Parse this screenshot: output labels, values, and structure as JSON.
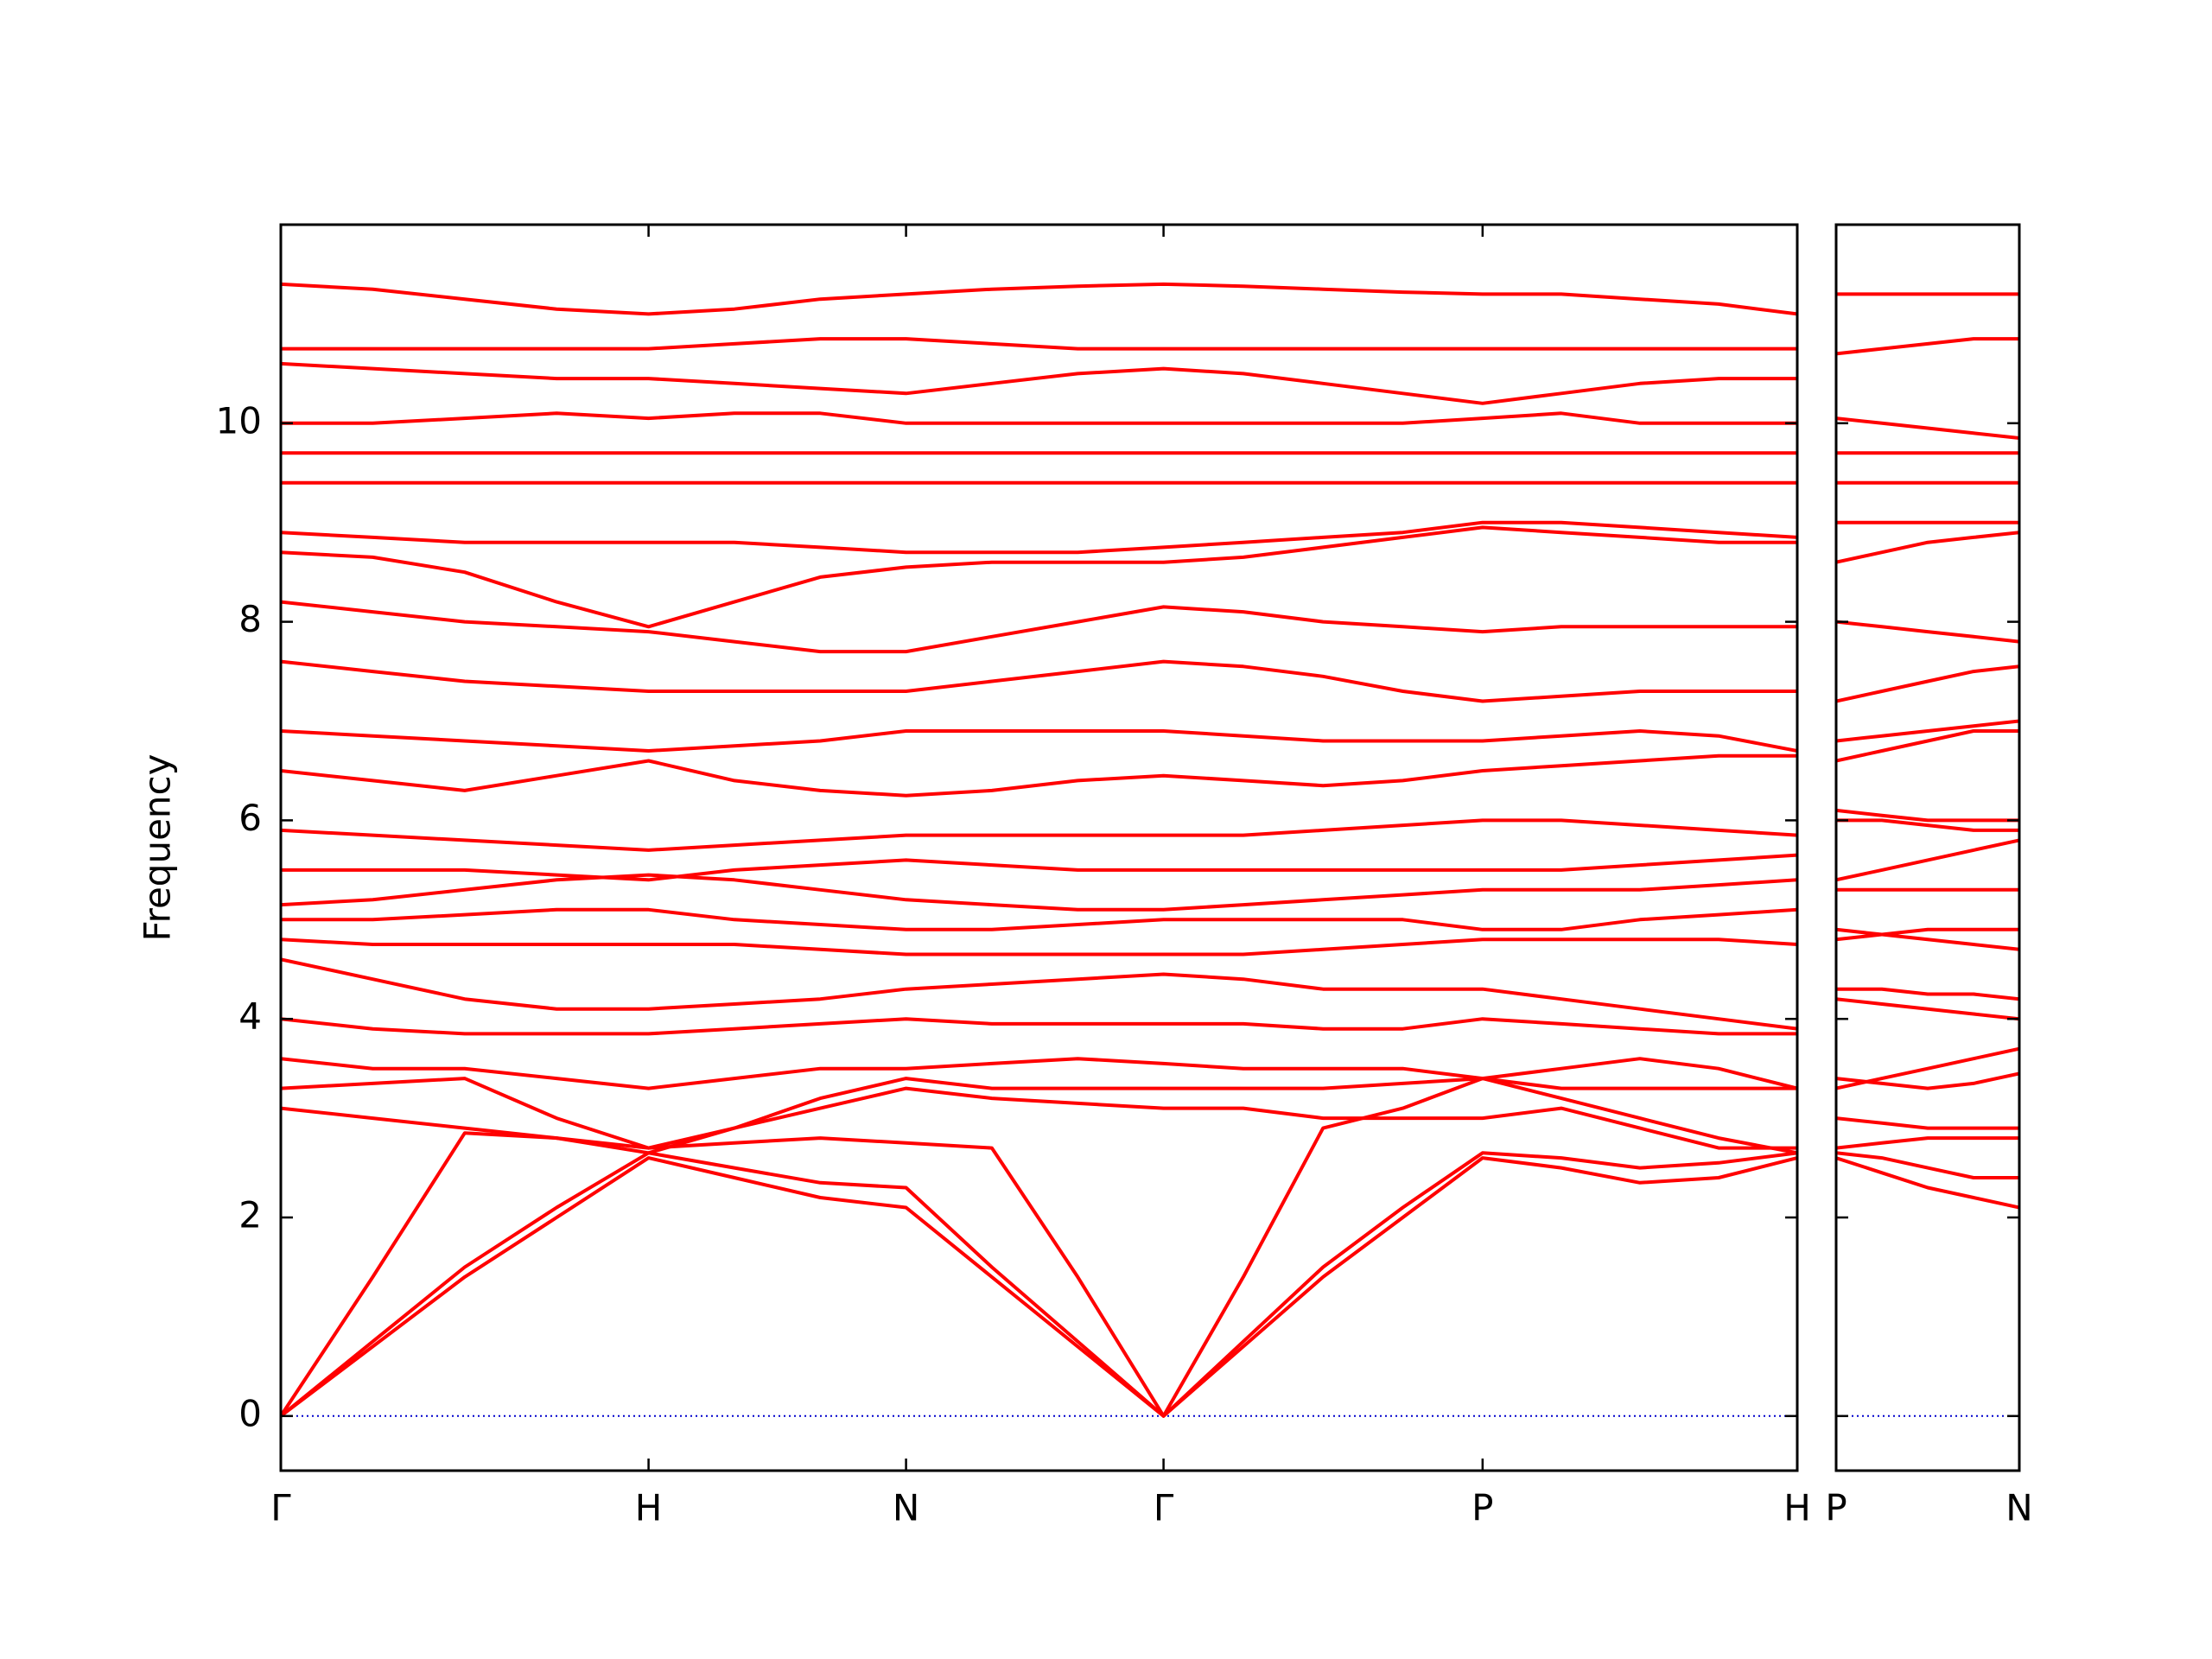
{
  "chart_data": [
    {
      "type": "line",
      "ylabel": "Frequency",
      "color": "#ff0000",
      "zero_line_color": "#0000cc",
      "ylim": [
        -0.55,
        12.0
      ],
      "yticks": [
        0,
        2,
        4,
        6,
        8,
        10
      ],
      "categories": [
        "Γ",
        null,
        null,
        null,
        "H",
        null,
        null,
        "N",
        null,
        null,
        "Γ",
        null,
        null,
        null,
        "P",
        null,
        null,
        null,
        "H"
      ],
      "series": [
        {
          "values": [
            0,
            0.7,
            1.4,
            2.0,
            2.6,
            2.4,
            2.2,
            2.1,
            1.4,
            0.7,
            0,
            0.7,
            1.4,
            2.0,
            2.6,
            2.5,
            2.35,
            2.4,
            2.6
          ]
        },
        {
          "values": [
            0,
            0.75,
            1.5,
            2.1,
            2.65,
            2.5,
            2.35,
            2.3,
            1.5,
            0.75,
            0,
            0.75,
            1.5,
            2.1,
            2.65,
            2.6,
            2.5,
            2.55,
            2.65
          ]
        },
        {
          "values": [
            0,
            1.4,
            2.85,
            2.8,
            2.7,
            2.75,
            2.8,
            2.75,
            2.7,
            1.4,
            0,
            1.4,
            2.9,
            3.1,
            3.4,
            3.2,
            3.0,
            2.8,
            2.65
          ]
        },
        {
          "values": [
            3.1,
            3.0,
            2.9,
            2.8,
            2.65,
            2.9,
            3.1,
            3.3,
            3.2,
            3.15,
            3.1,
            3.1,
            3.0,
            3.0,
            3.0,
            3.1,
            2.9,
            2.7,
            2.7
          ]
        },
        {
          "values": [
            3.3,
            3.35,
            3.4,
            3.0,
            2.7,
            2.9,
            3.2,
            3.4,
            3.3,
            3.3,
            3.3,
            3.3,
            3.3,
            3.35,
            3.4,
            3.5,
            3.6,
            3.5,
            3.3
          ]
        },
        {
          "values": [
            3.6,
            3.5,
            3.5,
            3.4,
            3.3,
            3.4,
            3.5,
            3.5,
            3.55,
            3.6,
            3.55,
            3.5,
            3.5,
            3.5,
            3.4,
            3.3,
            3.3,
            3.3,
            3.3
          ]
        },
        {
          "values": [
            4.0,
            3.9,
            3.85,
            3.85,
            3.85,
            3.9,
            3.95,
            4.0,
            3.95,
            3.95,
            3.95,
            3.95,
            3.9,
            3.9,
            4.0,
            3.95,
            3.9,
            3.85,
            3.85
          ]
        },
        {
          "values": [
            4.6,
            4.4,
            4.2,
            4.1,
            4.1,
            4.15,
            4.2,
            4.3,
            4.35,
            4.4,
            4.45,
            4.4,
            4.3,
            4.3,
            4.3,
            4.2,
            4.1,
            4.0,
            3.9
          ]
        },
        {
          "values": [
            4.8,
            4.75,
            4.75,
            4.75,
            4.75,
            4.75,
            4.7,
            4.65,
            4.65,
            4.65,
            4.65,
            4.65,
            4.7,
            4.75,
            4.8,
            4.8,
            4.8,
            4.8,
            4.75
          ]
        },
        {
          "values": [
            5.0,
            5.0,
            5.05,
            5.1,
            5.1,
            5.0,
            4.95,
            4.9,
            4.9,
            4.95,
            5.0,
            5.0,
            5.0,
            5.0,
            4.9,
            4.9,
            5.0,
            5.05,
            5.1
          ]
        },
        {
          "values": [
            5.15,
            5.2,
            5.3,
            5.4,
            5.45,
            5.4,
            5.3,
            5.2,
            5.15,
            5.1,
            5.1,
            5.15,
            5.2,
            5.25,
            5.3,
            5.3,
            5.3,
            5.35,
            5.4
          ]
        },
        {
          "values": [
            5.5,
            5.5,
            5.5,
            5.45,
            5.4,
            5.5,
            5.55,
            5.6,
            5.55,
            5.5,
            5.5,
            5.5,
            5.5,
            5.5,
            5.5,
            5.5,
            5.55,
            5.6,
            5.65
          ]
        },
        {
          "values": [
            5.9,
            5.85,
            5.8,
            5.75,
            5.7,
            5.75,
            5.8,
            5.85,
            5.85,
            5.85,
            5.85,
            5.85,
            5.9,
            5.95,
            6.0,
            6.0,
            5.95,
            5.9,
            5.85
          ]
        },
        {
          "values": [
            6.5,
            6.4,
            6.3,
            6.45,
            6.6,
            6.4,
            6.3,
            6.25,
            6.3,
            6.4,
            6.45,
            6.4,
            6.35,
            6.4,
            6.5,
            6.55,
            6.6,
            6.65,
            6.65
          ]
        },
        {
          "values": [
            6.9,
            6.85,
            6.8,
            6.75,
            6.7,
            6.75,
            6.8,
            6.9,
            6.9,
            6.9,
            6.9,
            6.85,
            6.8,
            6.8,
            6.8,
            6.85,
            6.9,
            6.85,
            6.7
          ]
        },
        {
          "values": [
            7.6,
            7.5,
            7.4,
            7.35,
            7.3,
            7.3,
            7.3,
            7.3,
            7.4,
            7.5,
            7.6,
            7.55,
            7.45,
            7.3,
            7.2,
            7.25,
            7.3,
            7.3,
            7.3
          ]
        },
        {
          "values": [
            8.2,
            8.1,
            8.0,
            7.95,
            7.9,
            7.8,
            7.7,
            7.7,
            7.85,
            8.0,
            8.15,
            8.1,
            8.0,
            7.95,
            7.9,
            7.95,
            7.95,
            7.95,
            7.95
          ]
        },
        {
          "values": [
            8.7,
            8.65,
            8.5,
            8.2,
            7.95,
            8.2,
            8.45,
            8.55,
            8.6,
            8.6,
            8.6,
            8.65,
            8.75,
            8.85,
            8.95,
            8.9,
            8.85,
            8.8,
            8.8
          ]
        },
        {
          "values": [
            8.9,
            8.85,
            8.8,
            8.8,
            8.8,
            8.8,
            8.75,
            8.7,
            8.7,
            8.7,
            8.75,
            8.8,
            8.85,
            8.9,
            9.0,
            9.0,
            8.95,
            8.9,
            8.85
          ]
        },
        {
          "values": [
            9.4,
            9.4,
            9.4,
            9.4,
            9.4,
            9.4,
            9.4,
            9.4,
            9.4,
            9.4,
            9.4,
            9.4,
            9.4,
            9.4,
            9.4,
            9.4,
            9.4,
            9.4,
            9.4
          ]
        },
        {
          "values": [
            9.7,
            9.7,
            9.7,
            9.7,
            9.7,
            9.7,
            9.7,
            9.7,
            9.7,
            9.7,
            9.7,
            9.7,
            9.7,
            9.7,
            9.7,
            9.7,
            9.7,
            9.7,
            9.7
          ]
        },
        {
          "values": [
            10.0,
            10.0,
            10.05,
            10.1,
            10.05,
            10.1,
            10.1,
            10.0,
            10.0,
            10.0,
            10.0,
            10.0,
            10.0,
            10.0,
            10.05,
            10.1,
            10.0,
            10.0,
            10.0
          ]
        },
        {
          "values": [
            10.6,
            10.55,
            10.5,
            10.45,
            10.45,
            10.4,
            10.35,
            10.3,
            10.4,
            10.5,
            10.55,
            10.5,
            10.4,
            10.3,
            10.2,
            10.3,
            10.4,
            10.45,
            10.45
          ]
        },
        {
          "values": [
            10.75,
            10.75,
            10.75,
            10.75,
            10.75,
            10.8,
            10.85,
            10.85,
            10.8,
            10.75,
            10.75,
            10.75,
            10.75,
            10.75,
            10.75,
            10.75,
            10.75,
            10.75,
            10.75
          ]
        },
        {
          "values": [
            11.4,
            11.35,
            11.25,
            11.15,
            11.1,
            11.15,
            11.25,
            11.3,
            11.35,
            11.38,
            11.4,
            11.38,
            11.35,
            11.32,
            11.3,
            11.3,
            11.25,
            11.2,
            11.1
          ]
        }
      ]
    },
    {
      "type": "line",
      "color": "#ff0000",
      "zero_line_color": "#0000cc",
      "ylim": [
        -0.55,
        12.0
      ],
      "categories": [
        "P",
        null,
        null,
        null,
        "N"
      ],
      "series": [
        {
          "values": [
            2.6,
            2.45,
            2.3,
            2.2,
            2.1
          ]
        },
        {
          "values": [
            2.65,
            2.6,
            2.5,
            2.4,
            2.4
          ]
        },
        {
          "values": [
            2.7,
            2.75,
            2.8,
            2.8,
            2.8
          ]
        },
        {
          "values": [
            3.0,
            2.95,
            2.9,
            2.9,
            2.9
          ]
        },
        {
          "values": [
            3.4,
            3.35,
            3.3,
            3.35,
            3.45
          ]
        },
        {
          "values": [
            3.3,
            3.4,
            3.5,
            3.6,
            3.7
          ]
        },
        {
          "values": [
            4.2,
            4.15,
            4.1,
            4.05,
            4.0
          ]
        },
        {
          "values": [
            4.3,
            4.3,
            4.25,
            4.25,
            4.2
          ]
        },
        {
          "values": [
            4.8,
            4.85,
            4.9,
            4.9,
            4.9
          ]
        },
        {
          "values": [
            4.9,
            4.85,
            4.8,
            4.75,
            4.7
          ]
        },
        {
          "values": [
            5.3,
            5.3,
            5.3,
            5.3,
            5.3
          ]
        },
        {
          "values": [
            5.4,
            5.5,
            5.6,
            5.7,
            5.8
          ]
        },
        {
          "values": [
            6.0,
            6.0,
            5.95,
            5.9,
            5.9
          ]
        },
        {
          "values": [
            6.1,
            6.05,
            6.0,
            6.0,
            6.0
          ]
        },
        {
          "values": [
            6.6,
            6.7,
            6.8,
            6.9,
            6.9
          ]
        },
        {
          "values": [
            6.8,
            6.85,
            6.9,
            6.95,
            7.0
          ]
        },
        {
          "values": [
            7.2,
            7.3,
            7.4,
            7.5,
            7.55
          ]
        },
        {
          "values": [
            8.0,
            7.95,
            7.9,
            7.85,
            7.8
          ]
        },
        {
          "values": [
            8.6,
            8.7,
            8.8,
            8.85,
            8.9
          ]
        },
        {
          "values": [
            9.0,
            9.0,
            9.0,
            9.0,
            9.0
          ]
        },
        {
          "values": [
            9.4,
            9.4,
            9.4,
            9.4,
            9.4
          ]
        },
        {
          "values": [
            9.7,
            9.7,
            9.7,
            9.7,
            9.7
          ]
        },
        {
          "values": [
            10.05,
            10.0,
            9.95,
            9.9,
            9.85
          ]
        },
        {
          "values": [
            10.7,
            10.75,
            10.8,
            10.85,
            10.85
          ]
        },
        {
          "values": [
            11.3,
            11.3,
            11.3,
            11.3,
            11.3
          ]
        }
      ]
    }
  ]
}
